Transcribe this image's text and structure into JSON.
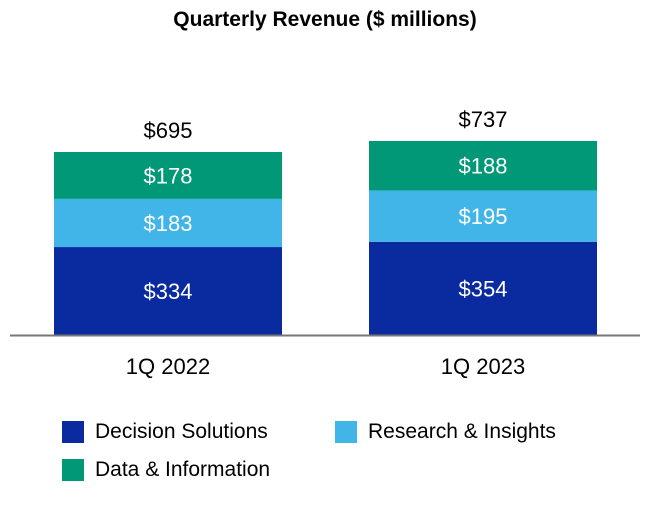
{
  "chart_data": {
    "type": "bar",
    "stacked": true,
    "title": "Quarterly Revenue ($ millions)",
    "xlabel": "",
    "ylabel": "",
    "ylim": [
      0,
      737
    ],
    "grid": false,
    "legend_position": "bottom",
    "categories": [
      "1Q 2022",
      "1Q 2023"
    ],
    "totals": [
      695,
      737
    ],
    "total_labels": [
      "$695",
      "$737"
    ],
    "series": [
      {
        "name": "Decision Solutions",
        "values": [
          334,
          354
        ],
        "labels": [
          "$334",
          "$354"
        ],
        "color": "#0A2AA0"
      },
      {
        "name": "Research & Insights",
        "values": [
          183,
          195
        ],
        "labels": [
          "$183",
          "$195"
        ],
        "color": "#42B5E8"
      },
      {
        "name": "Data & Information",
        "values": [
          178,
          188
        ],
        "labels": [
          "$178",
          "$188"
        ],
        "color": "#009877"
      }
    ]
  }
}
